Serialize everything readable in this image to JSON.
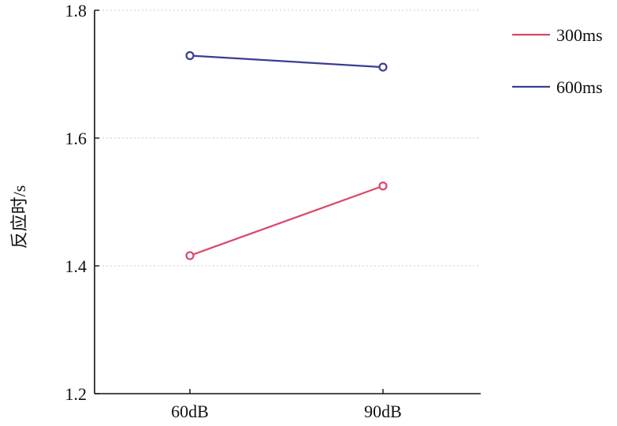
{
  "chart_data": {
    "type": "line",
    "title": "",
    "xlabel": "",
    "ylabel": "反应时/s",
    "categories": [
      "60dB",
      "90dB"
    ],
    "ylim": [
      1.2,
      1.8
    ],
    "yticks": [
      "1.2",
      "1.4",
      "1.6",
      "1.8"
    ],
    "grid": true,
    "legend_position": "top-right",
    "series": [
      {
        "name": "300ms",
        "color": "#d9476a",
        "values": [
          1.416,
          1.525
        ]
      },
      {
        "name": "600ms",
        "color": "#3a3d92",
        "values": [
          1.729,
          1.711
        ]
      }
    ]
  }
}
